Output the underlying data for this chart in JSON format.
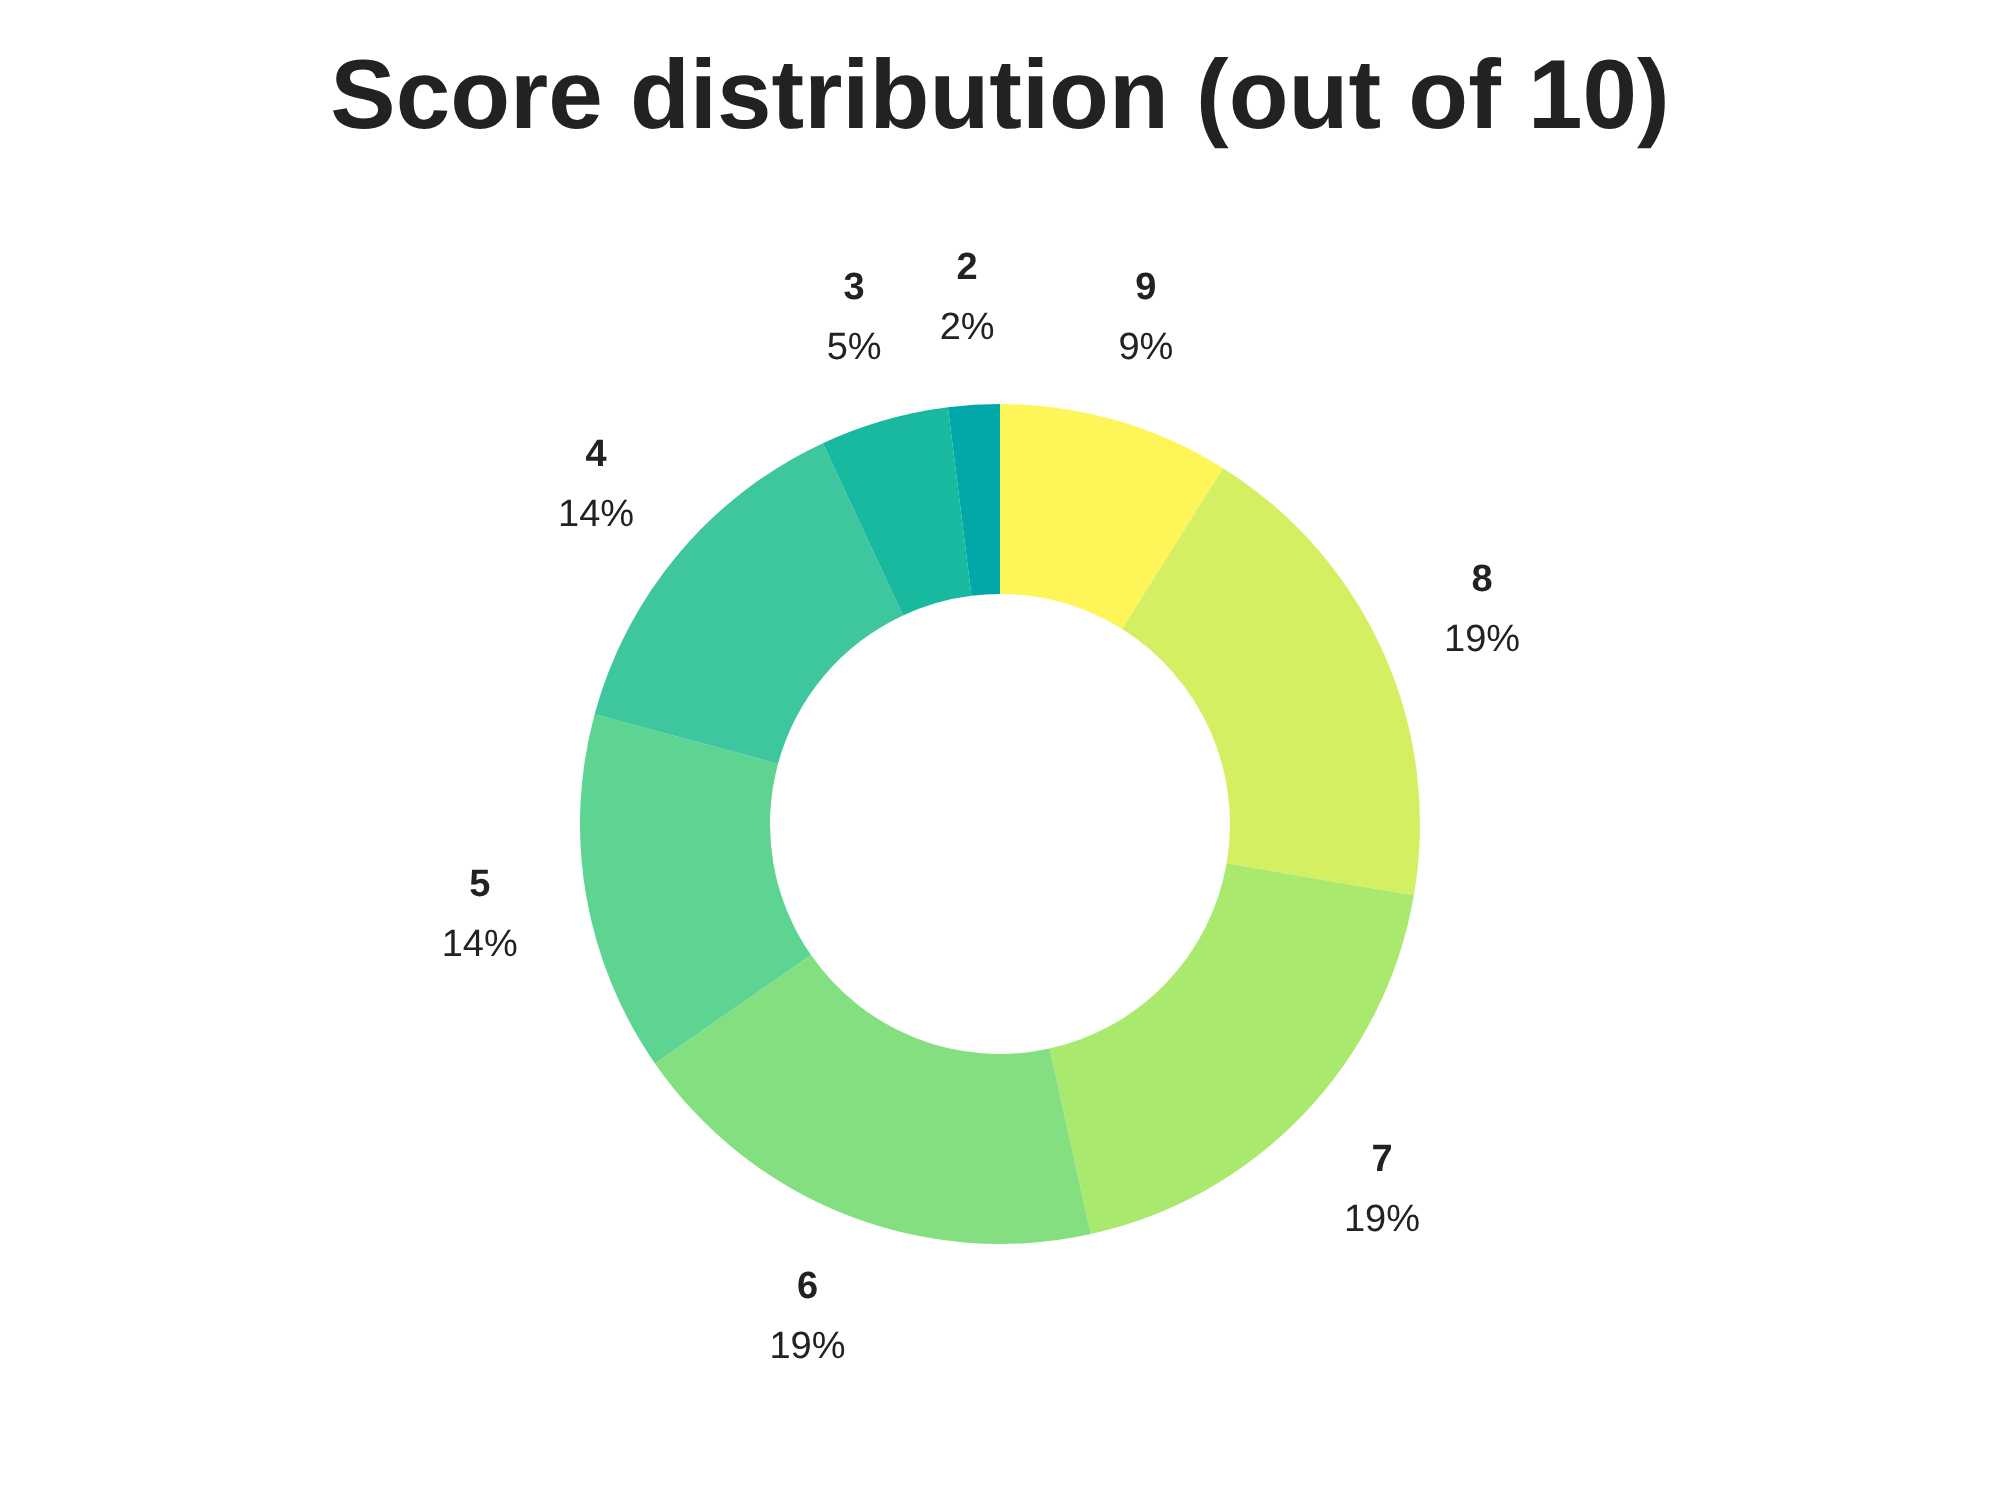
{
  "chart_data": {
    "type": "donut",
    "title": "Score distribution (out of 10)",
    "categories": [
      "9",
      "8",
      "7",
      "6",
      "5",
      "4",
      "3",
      "2"
    ],
    "values": [
      9,
      19,
      19,
      19,
      14,
      14,
      5,
      2
    ],
    "value_labels": [
      "9%",
      "19%",
      "19%",
      "19%",
      "14%",
      "14%",
      "5%",
      "2%"
    ],
    "colors": [
      "#fef658",
      "#d4f062",
      "#a9e96e",
      "#84df80",
      "#5dd492",
      "#3ec79e",
      "#19b9a0",
      "#01a8a7"
    ]
  }
}
